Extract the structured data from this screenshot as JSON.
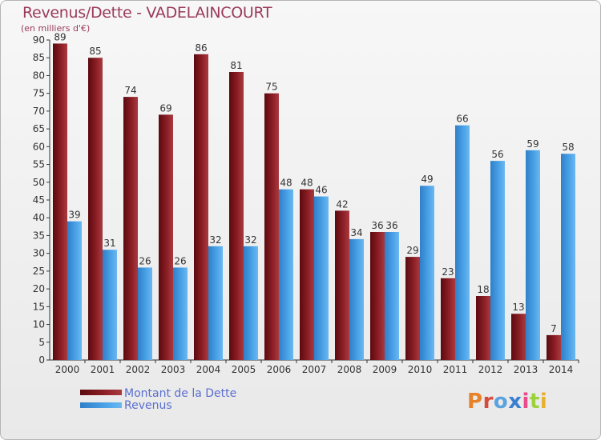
{
  "header": {
    "title": "Revenus/Dette - VADELAINCOURT",
    "subtitle": "(en milliers d'€)"
  },
  "legend": {
    "debt_label": "Montant de la Dette",
    "revenue_label": "Revenus"
  },
  "logo": {
    "text": "Proxiti",
    "letter_colors": [
      "#e8822a",
      "#d84a3a",
      "#5aa3e0",
      "#3a7fd0",
      "#e84a8a",
      "#9bd23a",
      "#e8b030"
    ]
  },
  "colors": {
    "debt": "#8b1e24",
    "revenue": "#4ba3e8"
  },
  "chart_data": {
    "type": "bar",
    "categories": [
      "2000",
      "2001",
      "2002",
      "2003",
      "2004",
      "2005",
      "2006",
      "2007",
      "2008",
      "2009",
      "2010",
      "2011",
      "2012",
      "2013",
      "2014"
    ],
    "series": [
      {
        "name": "Montant de la Dette",
        "values": [
          89,
          85,
          74,
          69,
          86,
          81,
          75,
          48,
          42,
          36,
          29,
          23,
          18,
          13,
          7
        ]
      },
      {
        "name": "Revenus",
        "values": [
          39,
          31,
          26,
          26,
          32,
          32,
          48,
          46,
          34,
          36,
          49,
          66,
          56,
          59,
          58
        ]
      }
    ],
    "ylim": [
      0,
      90
    ],
    "yticks": [
      0,
      5,
      10,
      15,
      20,
      25,
      30,
      35,
      40,
      45,
      50,
      55,
      60,
      65,
      70,
      75,
      80,
      85,
      90
    ],
    "grid": false,
    "legend_position": "bottom-left"
  }
}
